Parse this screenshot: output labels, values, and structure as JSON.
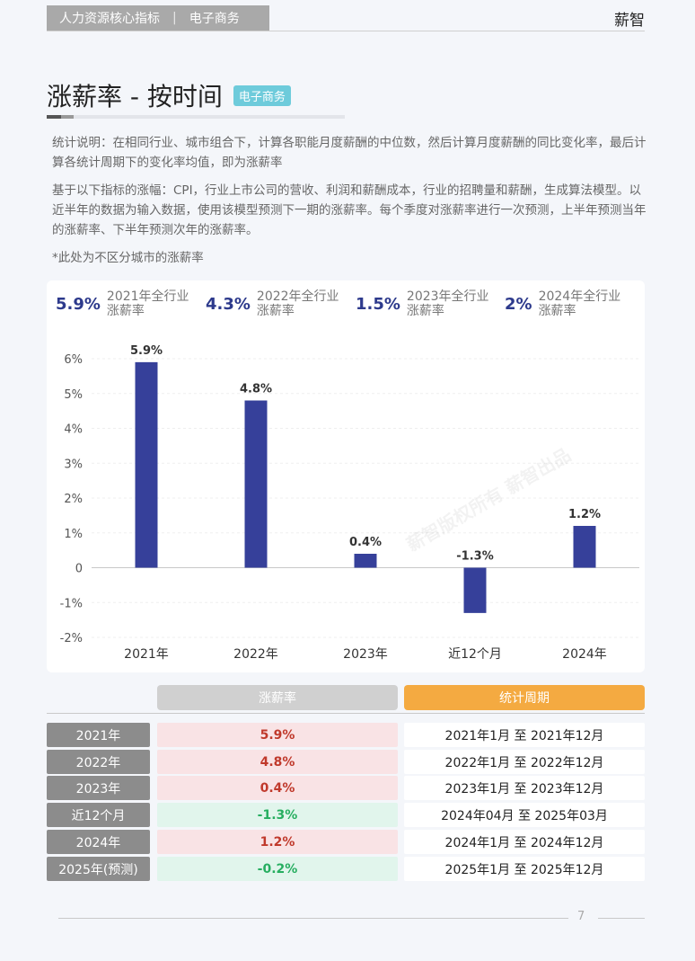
{
  "header": {
    "category": "人力资源核心指标",
    "section": "电子商务",
    "brand": "薪智"
  },
  "title": {
    "text": "涨薪率 - 按时间",
    "badge": "电子商务"
  },
  "description": {
    "line1": "统计说明：在相同行业、城市组合下，计算各职能月度薪酬的中位数，然后计算月度薪酬的同比变化率，最后计算各统计周期下的变化率均值，即为涨薪率",
    "line2": "基于以下指标的涨幅：CPI，行业上市公司的营收、利润和薪酬成本，行业的招聘量和薪酬，生成算法模型。以近半年的数据为输入数据，使用该模型预测下一期的涨薪率。每个季度对涨薪率进行一次预测，上半年预测当年的涨薪率、下半年预测次年的涨薪率。",
    "note": "*此处为不区分城市的涨薪率"
  },
  "summary": [
    {
      "value": "5.9%",
      "label": "2021年全行业涨薪率"
    },
    {
      "value": "4.3%",
      "label": "2022年全行业涨薪率"
    },
    {
      "value": "1.5%",
      "label": "2023年全行业涨薪率"
    },
    {
      "value": "2%",
      "label": "2024年全行业涨薪率"
    }
  ],
  "chart_data": {
    "type": "bar",
    "categories": [
      "2021年",
      "2022年",
      "2023年",
      "近12个月",
      "2024年"
    ],
    "values": [
      5.9,
      4.8,
      0.4,
      -1.3,
      1.2
    ],
    "data_labels": [
      "5.9%",
      "4.8%",
      "0.4%",
      "-1.3%",
      "1.2%"
    ],
    "ylim": [
      -2,
      6
    ],
    "yticks": [
      6,
      5,
      4,
      3,
      2,
      1,
      0,
      -1,
      -2
    ],
    "ytick_labels": [
      "6%",
      "5%",
      "4%",
      "3%",
      "2%",
      "1%",
      "0",
      "-1%",
      "-2%"
    ],
    "bar_color": "#36409a",
    "grid": true
  },
  "table": {
    "headers": {
      "rate": "涨薪率",
      "period": "统计周期"
    },
    "rows": [
      {
        "year": "2021年",
        "rate": "5.9%",
        "sign": "pos",
        "period": "2021年1月 至 2021年12月"
      },
      {
        "year": "2022年",
        "rate": "4.8%",
        "sign": "pos",
        "period": "2022年1月 至 2022年12月"
      },
      {
        "year": "2023年",
        "rate": "0.4%",
        "sign": "pos",
        "period": "2023年1月 至 2023年12月"
      },
      {
        "year": "近12个月",
        "rate": "-1.3%",
        "sign": "neg",
        "period": "2024年04月 至 2025年03月"
      },
      {
        "year": "2024年",
        "rate": "1.2%",
        "sign": "pos",
        "period": "2024年1月 至 2024年12月"
      },
      {
        "year": "2025年(预测)",
        "rate": "-0.2%",
        "sign": "neg",
        "period": "2025年1月 至 2025年12月"
      }
    ]
  },
  "footer": {
    "page": "7"
  },
  "watermark": "薪智版权所有 薪智出品"
}
